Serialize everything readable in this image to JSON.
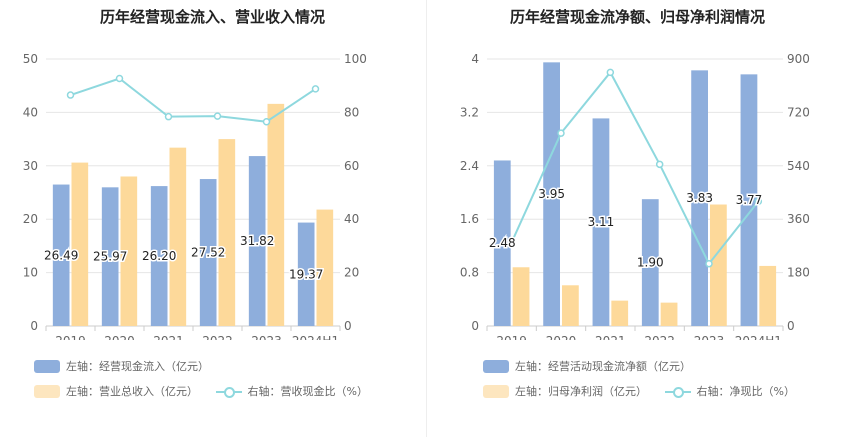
{
  "colors": {
    "bar1": "#8eaedc",
    "bar2": "#fdd99a",
    "line": "#8ed8de"
  },
  "chart_data": [
    {
      "type": "bar",
      "title": "历年经营现金流入、营业收入情况",
      "categories": [
        "2019",
        "2020",
        "2021",
        "2022",
        "2023",
        "2024H1"
      ],
      "series": [
        {
          "name": "左轴：经营现金流入（亿元）",
          "axis": "left",
          "kind": "bar",
          "values": [
            26.49,
            25.97,
            26.2,
            27.52,
            31.82,
            19.37
          ],
          "labels": [
            "26.49",
            "25.97",
            "26.20",
            "27.52",
            "31.82",
            "19.37"
          ]
        },
        {
          "name": "左轴：营业总收入（亿元）",
          "axis": "left",
          "kind": "bar",
          "values": [
            30.6,
            28.0,
            33.4,
            35.0,
            41.6,
            21.8
          ]
        },
        {
          "name": "右轴：营收现金比（%）",
          "axis": "right",
          "kind": "line",
          "values": [
            86.5,
            92.7,
            78.4,
            78.6,
            76.5,
            88.8
          ]
        }
      ],
      "yleft": {
        "min": 0,
        "max": 50,
        "ticks": [
          "0",
          "10",
          "20",
          "30",
          "40",
          "50"
        ]
      },
      "yright": {
        "min": 0,
        "max": 100,
        "ticks": [
          "0",
          "20",
          "40",
          "60",
          "80",
          "100"
        ]
      },
      "legend_position": "bottom"
    },
    {
      "type": "bar",
      "title": "历年经营现金流净额、归母净利润情况",
      "categories": [
        "2019",
        "2020",
        "2021",
        "2022",
        "2023",
        "2024H1"
      ],
      "series": [
        {
          "name": "左轴：经营活动现金流净额（亿元）",
          "axis": "left",
          "kind": "bar",
          "values": [
            2.48,
            3.95,
            3.11,
            1.9,
            3.83,
            3.77
          ],
          "labels": [
            "2.48",
            "3.95",
            "3.11",
            "1.90",
            "3.83",
            "3.77"
          ]
        },
        {
          "name": "左轴：归母净利润（亿元）",
          "axis": "left",
          "kind": "bar",
          "values": [
            0.88,
            0.61,
            0.38,
            0.35,
            1.82,
            0.9
          ]
        },
        {
          "name": "右轴：净现比（%）",
          "axis": "right",
          "kind": "line",
          "values": [
            282,
            650,
            855,
            545,
            210,
            420
          ]
        }
      ],
      "yleft": {
        "min": 0,
        "max": 4,
        "ticks": [
          "0",
          "0.8",
          "1.6",
          "2.4",
          "3.2",
          "4"
        ]
      },
      "yright": {
        "min": 0,
        "max": 900,
        "ticks": [
          "0",
          "180",
          "360",
          "540",
          "720",
          "900"
        ]
      },
      "legend_position": "bottom"
    }
  ]
}
